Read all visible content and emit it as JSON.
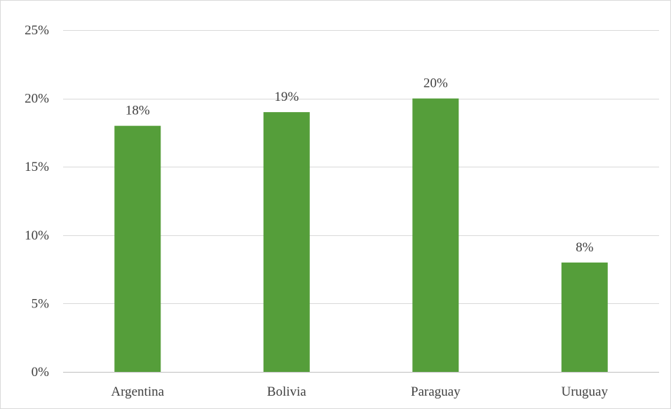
{
  "chart_data": {
    "type": "bar",
    "categories": [
      "Argentina",
      "Bolivia",
      "Paraguay",
      "Uruguay"
    ],
    "values": [
      18,
      19,
      20,
      8
    ],
    "data_labels": [
      "18%",
      "19%",
      "20%",
      "8%"
    ],
    "title": "",
    "xlabel": "",
    "ylabel": "",
    "ylim": [
      0,
      25
    ],
    "yticks": [
      0,
      5,
      10,
      15,
      20,
      25
    ],
    "ytick_labels": [
      "0%",
      "5%",
      "10%",
      "15%",
      "20%",
      "25%"
    ],
    "grid": true,
    "legend": "none",
    "bar_color": "#559e3a",
    "gridline_color": "#d9d9d9"
  }
}
